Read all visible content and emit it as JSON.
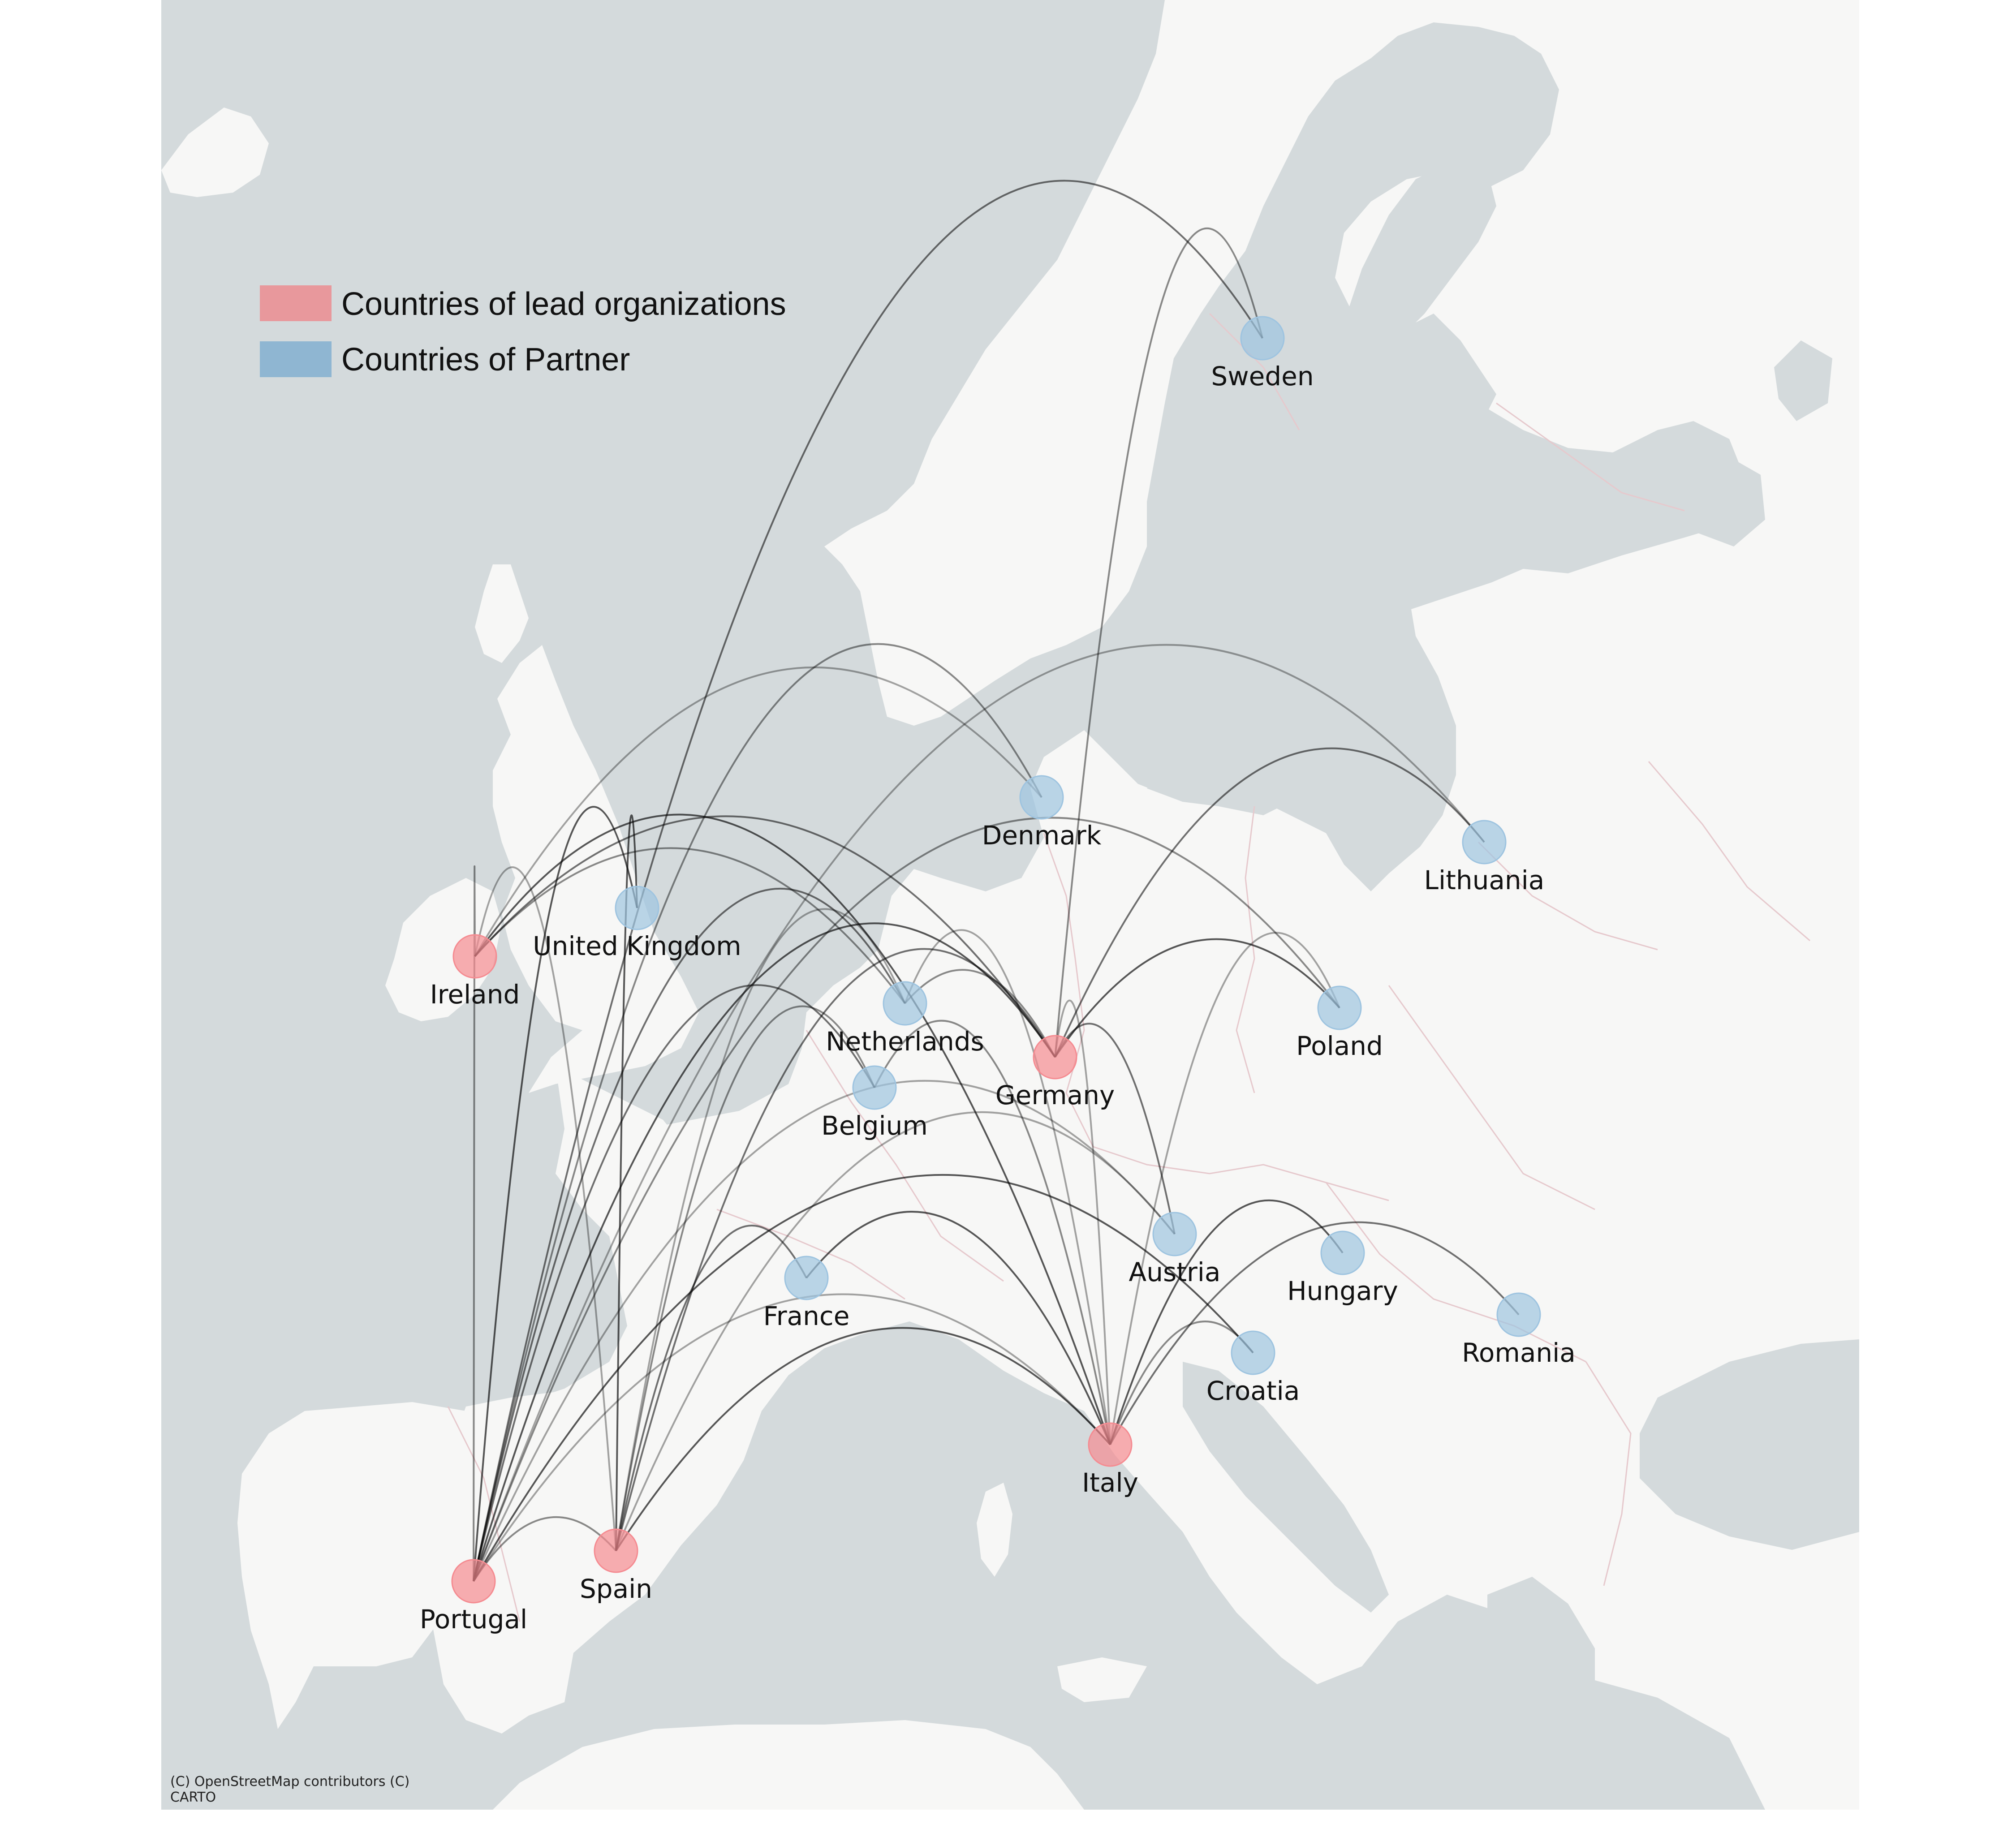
{
  "legend": {
    "lead_label": "Countries of lead organizations",
    "partner_label": "Countries of Partner",
    "lead_color": "#e8989c",
    "partner_color": "#8fb6d2"
  },
  "attribution": {
    "line1": "(C) OpenStreetMap contributors (C)",
    "line2": "CARTO"
  },
  "colors": {
    "sea": "#d4dadc",
    "land": "#f7f7f6",
    "lead_marker": "#f58b91",
    "partner_marker": "#9ec4e0",
    "flow_line": "#000000"
  },
  "countries": [
    {
      "id": "ireland",
      "name": "Ireland",
      "role": "lead"
    },
    {
      "id": "portugal",
      "name": "Portugal",
      "role": "lead"
    },
    {
      "id": "spain",
      "name": "Spain",
      "role": "lead"
    },
    {
      "id": "germany",
      "name": "Germany",
      "role": "lead"
    },
    {
      "id": "italy",
      "name": "Italy",
      "role": "lead"
    },
    {
      "id": "sweden",
      "name": "Sweden",
      "role": "partner"
    },
    {
      "id": "denmark",
      "name": "Denmark",
      "role": "partner"
    },
    {
      "id": "lithuania",
      "name": "Lithuania",
      "role": "partner"
    },
    {
      "id": "united-kingdom",
      "name": "United Kingdom",
      "role": "partner"
    },
    {
      "id": "netherlands",
      "name": "Netherlands",
      "role": "partner"
    },
    {
      "id": "poland",
      "name": "Poland",
      "role": "partner"
    },
    {
      "id": "belgium",
      "name": "Belgium",
      "role": "partner"
    },
    {
      "id": "austria",
      "name": "Austria",
      "role": "partner"
    },
    {
      "id": "hungary",
      "name": "Hungary",
      "role": "partner"
    },
    {
      "id": "france",
      "name": "France",
      "role": "partner"
    },
    {
      "id": "romania",
      "name": "Romania",
      "role": "partner"
    },
    {
      "id": "croatia",
      "name": "Croatia",
      "role": "partner"
    }
  ],
  "flows": [
    {
      "from": "ireland",
      "to": "spain"
    },
    {
      "from": "ireland",
      "to": "portugal"
    },
    {
      "from": "ireland",
      "to": "germany"
    },
    {
      "from": "ireland",
      "to": "italy"
    },
    {
      "from": "ireland",
      "to": "denmark"
    },
    {
      "from": "ireland",
      "to": "netherlands"
    },
    {
      "from": "portugal",
      "to": "sweden"
    },
    {
      "from": "portugal",
      "to": "germany"
    },
    {
      "from": "portugal",
      "to": "italy"
    },
    {
      "from": "portugal",
      "to": "spain"
    },
    {
      "from": "portugal",
      "to": "netherlands"
    },
    {
      "from": "portugal",
      "to": "united-kingdom"
    },
    {
      "from": "portugal",
      "to": "lithuania"
    },
    {
      "from": "portugal",
      "to": "poland"
    },
    {
      "from": "portugal",
      "to": "belgium"
    },
    {
      "from": "portugal",
      "to": "croatia"
    },
    {
      "from": "portugal",
      "to": "austria"
    },
    {
      "from": "portugal",
      "to": "denmark"
    },
    {
      "from": "spain",
      "to": "germany"
    },
    {
      "from": "spain",
      "to": "italy"
    },
    {
      "from": "spain",
      "to": "netherlands"
    },
    {
      "from": "spain",
      "to": "belgium"
    },
    {
      "from": "spain",
      "to": "france"
    },
    {
      "from": "spain",
      "to": "united-kingdom"
    },
    {
      "from": "spain",
      "to": "austria"
    },
    {
      "from": "germany",
      "to": "sweden"
    },
    {
      "from": "germany",
      "to": "lithuania"
    },
    {
      "from": "germany",
      "to": "poland"
    },
    {
      "from": "germany",
      "to": "italy"
    },
    {
      "from": "germany",
      "to": "netherlands"
    },
    {
      "from": "germany",
      "to": "austria"
    },
    {
      "from": "italy",
      "to": "france"
    },
    {
      "from": "italy",
      "to": "netherlands"
    },
    {
      "from": "italy",
      "to": "croatia"
    },
    {
      "from": "italy",
      "to": "romania"
    },
    {
      "from": "italy",
      "to": "hungary"
    },
    {
      "from": "italy",
      "to": "poland"
    },
    {
      "from": "italy",
      "to": "belgium"
    }
  ]
}
